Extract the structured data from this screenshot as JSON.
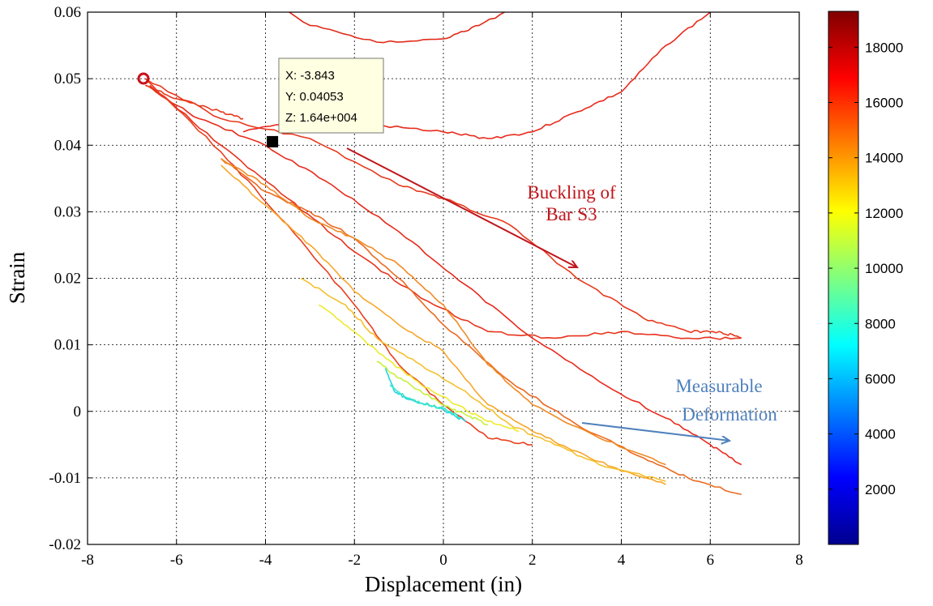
{
  "chart_data": {
    "type": "line",
    "xlabel": "Displacement (in)",
    "ylabel": "Strain",
    "xlim": [
      -8,
      8
    ],
    "ylim": [
      -0.02,
      0.06
    ],
    "x_ticks": [
      "-8",
      "-6",
      "-4",
      "-2",
      "0",
      "2",
      "4",
      "6",
      "8"
    ],
    "y_ticks": [
      "-0.02",
      "-0.01",
      "0",
      "0.01",
      "0.02",
      "0.03",
      "0.04",
      "0.05",
      "0.06"
    ],
    "grid": true,
    "colorbar": {
      "colormap": "jet",
      "range": [
        0,
        19300
      ],
      "ticks": [
        "2000",
        "4000",
        "6000",
        "8000",
        "10000",
        "12000",
        "14000",
        "16000",
        "18000"
      ]
    },
    "series": [
      {
        "color": "#e82a1c",
        "x": [
          -6.7,
          -5.5,
          -4,
          -2.5,
          -1,
          0.5,
          2,
          3.5,
          5,
          6,
          6.7
        ],
        "y": [
          0.049,
          0.044,
          0.04,
          0.034,
          0.027,
          0.019,
          0.011,
          0.0045,
          -0.001,
          -0.005,
          -0.008
        ]
      },
      {
        "color": "#e8381c",
        "x": [
          -6.7,
          -5,
          -3,
          -1,
          0,
          1.5,
          3,
          4.5,
          5.5,
          6.2,
          6.7
        ],
        "y": [
          0.05,
          0.044,
          0.041,
          0.034,
          0.032,
          0.028,
          0.02,
          0.014,
          0.012,
          0.012,
          0.011
        ]
      },
      {
        "color": "#e8321c",
        "x": [
          -6.6,
          -5,
          -3.5,
          -2,
          -0.5,
          1,
          2.5,
          4,
          5.5,
          6.7
        ],
        "y": [
          0.049,
          0.04,
          0.032,
          0.024,
          0.017,
          0.012,
          0.011,
          0.012,
          0.011,
          0.011
        ]
      },
      {
        "color": "#ea3f1e",
        "x": [
          -6.7,
          -5,
          -3.5,
          -2,
          -1,
          0,
          1,
          2
        ],
        "y": [
          0.05,
          0.039,
          0.028,
          0.016,
          0.007,
          0.001,
          -0.004,
          -0.005
        ]
      },
      {
        "color": "#e83b1c",
        "x": [
          -6.7,
          -6,
          -5,
          -4.5
        ],
        "y": [
          0.049,
          0.047,
          0.045,
          0.044
        ]
      },
      {
        "color": "#e02a18",
        "x": [
          -4.5,
          -3,
          -1.5,
          0,
          0.8,
          2,
          3.5,
          4.5
        ],
        "y": [
          0.0645,
          0.058,
          0.0555,
          0.056,
          0.058,
          0.062,
          0.064,
          0.065
        ]
      },
      {
        "color": "#e82a1c",
        "x": [
          -4.5,
          -3,
          -1.5,
          0,
          1,
          2,
          3,
          4,
          5,
          6
        ],
        "y": [
          0.042,
          0.044,
          0.043,
          0.042,
          0.041,
          0.042,
          0.045,
          0.048,
          0.055,
          0.06
        ]
      },
      {
        "color": "#ea6a22",
        "x": [
          -5,
          -4,
          -3,
          -2,
          -1,
          0,
          1.5,
          3,
          4.5,
          5.5,
          6.7
        ],
        "y": [
          0.038,
          0.033,
          0.03,
          0.026,
          0.02,
          0.013,
          0.0045,
          -0.002,
          -0.007,
          -0.01,
          -0.0125
        ]
      },
      {
        "color": "#f08a24",
        "x": [
          -5,
          -4,
          -3,
          -2,
          -1,
          0,
          1,
          2,
          3.5,
          5
        ],
        "y": [
          0.038,
          0.034,
          0.029,
          0.026,
          0.022,
          0.016,
          0.007,
          0.001,
          -0.004,
          -0.008
        ]
      },
      {
        "color": "#f7a62a",
        "x": [
          -5,
          -4,
          -3,
          -2,
          -1,
          0,
          1,
          2,
          3,
          4,
          5
        ],
        "y": [
          0.037,
          0.031,
          0.025,
          0.018,
          0.013,
          0.009,
          0.001,
          -0.003,
          -0.006,
          -0.009,
          -0.011
        ]
      },
      {
        "color": "#f5c02e",
        "x": [
          -3.2,
          -2.2,
          -1.5,
          -0.5,
          0.5,
          1.5,
          2.5,
          3.5,
          5
        ],
        "y": [
          0.02,
          0.016,
          0.011,
          0.007,
          0.003,
          -0.002,
          -0.005,
          -0.008,
          -0.0105
        ]
      },
      {
        "color": "#eeea2c",
        "x": [
          -2.8,
          -2,
          -1.3,
          -0.5,
          0.3,
          1,
          1.7
        ],
        "y": [
          0.016,
          0.012,
          0.008,
          0.004,
          0.001,
          -0.0015,
          -0.003
        ]
      },
      {
        "color": "#c8f03a",
        "x": [
          -1.5,
          -1,
          -0.5,
          0,
          0.5,
          1
        ],
        "y": [
          0.0075,
          0.005,
          0.003,
          0.001,
          -0.0005,
          -0.002
        ]
      },
      {
        "color": "#22d6e0",
        "x": [
          -1.3,
          -1.1,
          -0.8,
          -0.5,
          -0.2,
          0.2,
          0.5
        ],
        "y": [
          0.0065,
          0.003,
          0.0018,
          0.0012,
          0.0008,
          -0.0005,
          -0.0015
        ]
      },
      {
        "color": "#3ce6c8",
        "x": [
          -1.2,
          -0.8,
          -0.4,
          0,
          0.4
        ],
        "y": [
          0.004,
          0.002,
          0.001,
          0.0005,
          -0.001
        ]
      }
    ],
    "annotations": [
      {
        "text_lines": [
          "Buckling of",
          "Bar S3"
        ],
        "color": "#c0151b"
      },
      {
        "text_lines": [
          "Measurable",
          "Deformation"
        ],
        "color": "#4f81bd"
      }
    ],
    "datatip": {
      "x_text": "X: -3.843",
      "y_text": "Y: 0.04053",
      "z_text": "Z: 1.64e+004",
      "x": -3.843,
      "y": 0.04053
    }
  }
}
